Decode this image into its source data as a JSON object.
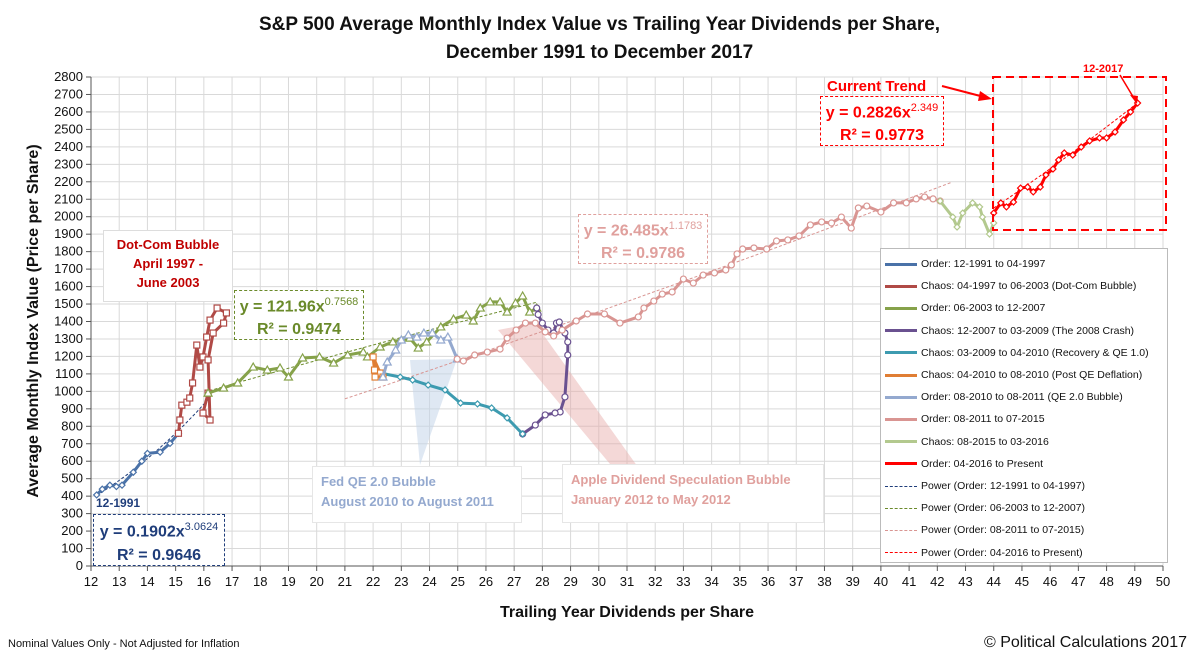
{
  "chart_data": {
    "type": "line",
    "title": "S&P 500 Average Monthly Index Value vs Trailing Year Dividends per Share,",
    "subtitle": "December 1991 to December 2017",
    "xlabel": "Trailing Year Dividends per Share",
    "ylabel": "Average Monthly Index Value (Price per Share)",
    "xlim": [
      12,
      50
    ],
    "ylim": [
      0,
      2800
    ],
    "xticks": [
      12,
      13,
      14,
      15,
      16,
      17,
      18,
      19,
      20,
      21,
      22,
      23,
      24,
      25,
      26,
      27,
      28,
      29,
      30,
      31,
      32,
      33,
      34,
      35,
      36,
      37,
      38,
      39,
      40,
      41,
      42,
      43,
      44,
      45,
      46,
      47,
      48,
      49,
      50
    ],
    "yticks": [
      0,
      100,
      200,
      300,
      400,
      500,
      600,
      700,
      800,
      900,
      1000,
      1100,
      1200,
      1300,
      1400,
      1500,
      1600,
      1700,
      1800,
      1900,
      2000,
      2100,
      2200,
      2300,
      2400,
      2500,
      2600,
      2700,
      2800
    ],
    "grid": true,
    "legend_position": "right",
    "series": [
      {
        "name": "Order: 12-1991 to 04-1997",
        "color": "#4a72a8",
        "marker": "diamond",
        "points": [
          [
            12.2,
            407
          ],
          [
            12.4,
            440
          ],
          [
            12.67,
            463
          ],
          [
            12.9,
            455
          ],
          [
            13.1,
            463
          ],
          [
            13.5,
            537
          ],
          [
            13.8,
            600
          ],
          [
            14.0,
            645
          ],
          [
            14.45,
            652
          ],
          [
            14.8,
            702
          ],
          [
            15.1,
            760
          ]
        ]
      },
      {
        "name": "Chaos: 04-1997 to 06-2003 (Dot-Com Bubble)",
        "color": "#b04a46",
        "marker": "square",
        "points": [
          [
            15.1,
            760
          ],
          [
            15.15,
            836
          ],
          [
            15.22,
            921
          ],
          [
            15.4,
            938
          ],
          [
            15.5,
            962
          ],
          [
            15.6,
            1048
          ],
          [
            15.75,
            1265
          ],
          [
            15.86,
            1139
          ],
          [
            15.97,
            1197
          ],
          [
            16.1,
            1311
          ],
          [
            16.22,
            1408
          ],
          [
            16.47,
            1477
          ],
          [
            16.8,
            1449
          ],
          [
            16.7,
            1391
          ],
          [
            16.33,
            1334
          ],
          [
            16.15,
            1180
          ],
          [
            16.22,
            836
          ],
          [
            15.97,
            876
          ],
          [
            16.15,
            990
          ]
        ]
      },
      {
        "name": "Order: 06-2003 to 12-2007",
        "color": "#86a24a",
        "marker": "triangle",
        "points": [
          [
            16.15,
            990
          ],
          [
            16.7,
            1019
          ],
          [
            17.2,
            1048
          ],
          [
            17.75,
            1139
          ],
          [
            18.25,
            1122
          ],
          [
            18.7,
            1134
          ],
          [
            19.0,
            1082
          ],
          [
            19.5,
            1191
          ],
          [
            20.1,
            1197
          ],
          [
            20.6,
            1162
          ],
          [
            21.1,
            1208
          ],
          [
            21.65,
            1225
          ],
          [
            21.8,
            1197
          ],
          [
            22.25,
            1254
          ],
          [
            22.7,
            1283
          ],
          [
            23.3,
            1305
          ],
          [
            23.6,
            1248
          ],
          [
            23.9,
            1283
          ],
          [
            24.4,
            1369
          ],
          [
            24.85,
            1414
          ],
          [
            25.3,
            1437
          ],
          [
            25.55,
            1403
          ],
          [
            25.8,
            1477
          ],
          [
            26.15,
            1512
          ],
          [
            26.5,
            1512
          ],
          [
            26.75,
            1454
          ],
          [
            27.05,
            1506
          ],
          [
            27.3,
            1546
          ],
          [
            27.55,
            1454
          ],
          [
            27.8,
            1477
          ]
        ]
      },
      {
        "name": "Chaos: 12-2007 to 03-2009 (The 2008 Crash)",
        "color": "#6a5190",
        "marker": "circle",
        "points": [
          [
            27.8,
            1477
          ],
          [
            27.85,
            1440
          ],
          [
            28.0,
            1391
          ],
          [
            28.2,
            1351
          ],
          [
            28.4,
            1334
          ],
          [
            28.5,
            1391
          ],
          [
            28.6,
            1397
          ],
          [
            28.8,
            1334
          ],
          [
            28.9,
            1283
          ],
          [
            28.9,
            1208
          ],
          [
            28.8,
            968
          ],
          [
            28.63,
            882
          ],
          [
            28.45,
            876
          ],
          [
            28.1,
            865
          ],
          [
            27.75,
            807
          ],
          [
            27.3,
            756
          ]
        ]
      },
      {
        "name": "Chaos: 03-2009 to 04-2010 (Recovery & QE 1.0)",
        "color": "#3d9bb0",
        "marker": "diamond",
        "points": [
          [
            27.3,
            756
          ],
          [
            26.75,
            848
          ],
          [
            26.2,
            905
          ],
          [
            25.7,
            928
          ],
          [
            25.1,
            933
          ],
          [
            24.55,
            1008
          ],
          [
            23.95,
            1036
          ],
          [
            23.4,
            1065
          ],
          [
            22.96,
            1082
          ],
          [
            22.25,
            1105
          ]
        ]
      },
      {
        "name": "Chaos: 04-2010 to 08-2010 (Post QE Deflation)",
        "color": "#e07e34",
        "marker": "square",
        "points": [
          [
            22.25,
            1105
          ],
          [
            22.0,
            1197
          ],
          [
            22.05,
            1122
          ],
          [
            22.07,
            1082
          ],
          [
            22.35,
            1082
          ]
        ]
      },
      {
        "name": "Order: 08-2010 to 08-2011 (QE 2.0 Bubble)",
        "color": "#94a9cf",
        "marker": "triangle",
        "points": [
          [
            22.35,
            1082
          ],
          [
            22.5,
            1168
          ],
          [
            22.8,
            1237
          ],
          [
            23.0,
            1294
          ],
          [
            23.25,
            1323
          ],
          [
            23.55,
            1311
          ],
          [
            23.8,
            1334
          ],
          [
            24.1,
            1334
          ],
          [
            24.4,
            1294
          ],
          [
            24.65,
            1311
          ],
          [
            24.98,
            1185
          ]
        ]
      },
      {
        "name": "Order: 08-2011 to 07-2015",
        "color": "#d99592",
        "marker": "circle",
        "points": [
          [
            24.98,
            1185
          ],
          [
            25.2,
            1174
          ],
          [
            25.6,
            1208
          ],
          [
            26.05,
            1225
          ],
          [
            26.5,
            1242
          ],
          [
            26.75,
            1305
          ],
          [
            27.07,
            1351
          ],
          [
            27.4,
            1391
          ],
          [
            27.75,
            1391
          ],
          [
            28.1,
            1340
          ],
          [
            28.4,
            1317
          ],
          [
            28.7,
            1351
          ],
          [
            29.2,
            1403
          ],
          [
            29.6,
            1443
          ],
          [
            30.2,
            1443
          ],
          [
            30.75,
            1391
          ],
          [
            31.4,
            1426
          ],
          [
            31.6,
            1477
          ],
          [
            31.95,
            1517
          ],
          [
            32.25,
            1557
          ],
          [
            32.6,
            1569
          ],
          [
            33.0,
            1643
          ],
          [
            33.35,
            1620
          ],
          [
            33.7,
            1666
          ],
          [
            34.1,
            1678
          ],
          [
            34.5,
            1695
          ],
          [
            34.7,
            1724
          ],
          [
            34.9,
            1787
          ],
          [
            35.1,
            1815
          ],
          [
            35.5,
            1821
          ],
          [
            35.95,
            1815
          ],
          [
            36.3,
            1861
          ],
          [
            36.7,
            1867
          ],
          [
            37.1,
            1890
          ],
          [
            37.5,
            1953
          ],
          [
            37.9,
            1970
          ],
          [
            38.25,
            1964
          ],
          [
            38.6,
            1998
          ],
          [
            38.95,
            1935
          ],
          [
            39.2,
            2050
          ],
          [
            39.5,
            2061
          ],
          [
            40.0,
            2027
          ],
          [
            40.45,
            2079
          ],
          [
            40.9,
            2079
          ],
          [
            41.25,
            2102
          ],
          [
            41.55,
            2113
          ],
          [
            41.85,
            2102
          ],
          [
            42.1,
            2090
          ]
        ]
      },
      {
        "name": "Chaos: 08-2015 to 03-2016",
        "color": "#b3c98e",
        "marker": "diamond",
        "points": [
          [
            42.1,
            2090
          ],
          [
            42.55,
            1998
          ],
          [
            42.7,
            1941
          ],
          [
            42.9,
            2021
          ],
          [
            43.25,
            2079
          ],
          [
            43.5,
            2056
          ],
          [
            43.6,
            1998
          ],
          [
            43.85,
            1901
          ],
          [
            44.0,
            1964
          ]
        ]
      },
      {
        "name": "Order: 04-2016 to Present",
        "color": "#ff0000",
        "marker": "diamond",
        "points": [
          [
            44.0,
            2021
          ],
          [
            44.25,
            2079
          ],
          [
            44.45,
            2056
          ],
          [
            44.7,
            2084
          ],
          [
            44.95,
            2164
          ],
          [
            45.2,
            2170
          ],
          [
            45.4,
            2142
          ],
          [
            45.65,
            2170
          ],
          [
            45.85,
            2239
          ],
          [
            46.1,
            2273
          ],
          [
            46.3,
            2325
          ],
          [
            46.5,
            2365
          ],
          [
            46.8,
            2353
          ],
          [
            47.1,
            2399
          ],
          [
            47.4,
            2434
          ],
          [
            47.75,
            2451
          ],
          [
            48.0,
            2451
          ],
          [
            48.3,
            2485
          ],
          [
            48.6,
            2554
          ],
          [
            48.85,
            2600
          ],
          [
            49.1,
            2651
          ]
        ]
      }
    ],
    "trendlines": [
      {
        "name": "Power (Order: 12-1991 to 04-1997)",
        "color": "#1f3d7a",
        "a": 0.1902,
        "b": 3.0624,
        "range": [
          12.2,
          16.2
        ],
        "equation": "y = 0.1902x",
        "exponent": "3.0624",
        "r2": "R² = 0.9646"
      },
      {
        "name": "Power (Order: 06-2003 to 12-2007)",
        "color": "#6a8a2a",
        "a": 121.96,
        "b": 0.7568,
        "range": [
          16.2,
          27.8
        ],
        "equation": "y = 121.96x",
        "exponent": "0.7568",
        "r2": "R² = 0.9474"
      },
      {
        "name": "Power (Order: 08-2011 to 07-2015)",
        "color": "#d99592",
        "a": 26.485,
        "b": 1.1783,
        "range": [
          21,
          42.5
        ],
        "equation": "y = 26.485x",
        "exponent": "1.1783",
        "r2": "R² = 0.9786"
      },
      {
        "name": "Power (Order: 04-2016 to Present)",
        "color": "#ff0000",
        "a": 0.2826,
        "b": 2.349,
        "range": [
          44,
          49.1
        ],
        "equation": "y = 0.2826x",
        "exponent": "2.349",
        "r2": "R² = 0.9773"
      }
    ],
    "annotations": {
      "start_label": "12-1991",
      "end_label": "12-2017",
      "current_trend": "Current Trend",
      "dotcom": [
        "Dot-Com Bubble",
        "April 1997 -",
        "June 2003"
      ],
      "qe2": [
        "Fed QE 2.0 Bubble",
        "August 2010 to August 2011"
      ],
      "apple": [
        "Apple Dividend Speculation Bubble",
        "January 2012 to May 2012"
      ]
    }
  },
  "footer": {
    "left": "Nominal Values Only - Not Adjusted for Inflation",
    "right": "© Political Calculations 2017"
  }
}
